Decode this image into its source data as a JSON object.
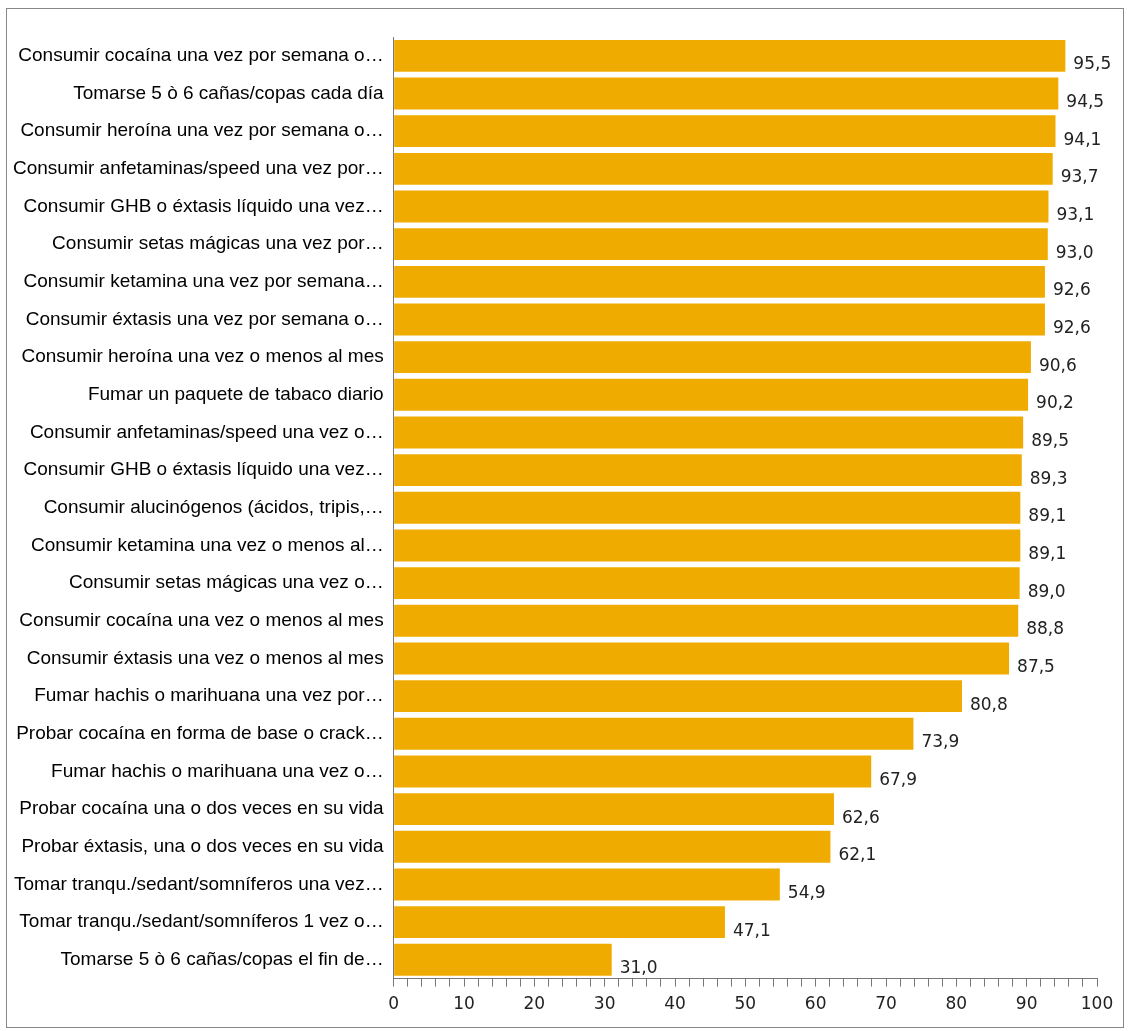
{
  "chart_data": {
    "type": "bar",
    "orientation": "horizontal",
    "color": "#f0ab00",
    "categories": [
      "Consumir cocaína una vez por semana o…",
      "Tomarse 5 ò 6 cañas/copas cada día",
      "Consumir heroína una vez por semana o…",
      "Consumir anfetaminas/speed una vez por…",
      "Consumir GHB o éxtasis líquido una vez…",
      "Consumir setas mágicas una vez por…",
      "Consumir ketamina una vez por semana…",
      "Consumir éxtasis una vez por semana o…",
      "Consumir heroína una vez o menos al mes",
      "Fumar un paquete de tabaco diario",
      "Consumir anfetaminas/speed una vez o…",
      "Consumir GHB o éxtasis líquido una vez…",
      "Consumir alucinógenos (ácidos, tripis,…",
      "Consumir ketamina una vez o menos al…",
      "Consumir setas mágicas una vez o…",
      "Consumir cocaína una vez o menos al mes",
      "Consumir éxtasis una vez o menos al mes",
      "Fumar hachis o marihuana una vez por…",
      "Probar cocaína en forma de base o crack…",
      "Fumar hachis o marihuana una vez o…",
      "Probar cocaína una o dos veces en su vida",
      "Probar éxtasis, una o dos veces en su vida",
      "Tomar tranqu./sedant/somníferos una vez…",
      "Tomar tranqu./sedant/somníferos 1 vez o…",
      "Tomarse 5 ò 6 cañas/copas el fin de…"
    ],
    "values": [
      95.5,
      94.5,
      94.1,
      93.7,
      93.1,
      93.0,
      92.6,
      92.6,
      90.6,
      90.2,
      89.5,
      89.3,
      89.1,
      89.1,
      89.0,
      88.8,
      87.5,
      80.8,
      73.9,
      67.9,
      62.6,
      62.1,
      54.9,
      47.1,
      31.0
    ],
    "value_labels": [
      "95,5",
      "94,5",
      "94,1",
      "93,7",
      "93,1",
      "93,0",
      "92,6",
      "92,6",
      "90,6",
      "90,2",
      "89,5",
      "89,3",
      "89,1",
      "89,1",
      "89,0",
      "88,8",
      "87,5",
      "80,8",
      "73,9",
      "67,9",
      "62,6",
      "62,1",
      "54,9",
      "47,1",
      "31,0"
    ],
    "xlim": [
      0,
      100
    ],
    "xticks": [
      0,
      {
        "value": 2,
        "label": null
      },
      {
        "value": 4,
        "label": null
      },
      {
        "value": 6,
        "label": null
      },
      {
        "value": 8,
        "label": null
      },
      10,
      {
        "value": 12,
        "label": null
      },
      {
        "value": 14,
        "label": null
      },
      {
        "value": 16,
        "label": null
      },
      {
        "value": 18,
        "label": null
      },
      20,
      {
        "value": 22,
        "label": null
      },
      {
        "value": 24,
        "label": null
      },
      {
        "value": 26,
        "label": null
      },
      {
        "value": 28,
        "label": null
      },
      30,
      {
        "value": 32,
        "label": null
      },
      {
        "value": 34,
        "label": null
      },
      {
        "value": 36,
        "label": null
      },
      {
        "value": 38,
        "label": null
      },
      40,
      {
        "value": 42,
        "label": null
      },
      {
        "value": 44,
        "label": null
      },
      {
        "value": 46,
        "label": null
      },
      {
        "value": 48,
        "label": null
      },
      50,
      {
        "value": 52,
        "label": null
      },
      {
        "value": 54,
        "label": null
      },
      {
        "value": 56,
        "label": null
      },
      {
        "value": 58,
        "label": null
      },
      60,
      {
        "value": 62,
        "label": null
      },
      {
        "value": 64,
        "label": null
      },
      {
        "value": 66,
        "label": null
      },
      {
        "value": 68,
        "label": null
      },
      70,
      {
        "value": 72,
        "label": null
      },
      {
        "value": 74,
        "label": null
      },
      {
        "value": 76,
        "label": null
      },
      {
        "value": 78,
        "label": null
      },
      80,
      {
        "value": 82,
        "label": null
      },
      {
        "value": 84,
        "label": null
      },
      {
        "value": 86,
        "label": null
      },
      {
        "value": 88,
        "label": null
      },
      90,
      {
        "value": 92,
        "label": null
      },
      {
        "value": 94,
        "label": null
      },
      {
        "value": 96,
        "label": null
      },
      {
        "value": 98,
        "label": null
      },
      100
    ],
    "grid": false,
    "legend": false
  }
}
